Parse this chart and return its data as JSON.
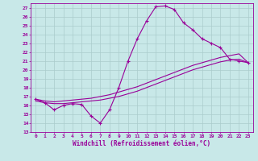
{
  "xlabel": "Windchill (Refroidissement éolien,°C)",
  "bg_color": "#c8e8e8",
  "line_color": "#990099",
  "grid_color": "#aacccc",
  "xlim": [
    -0.5,
    23.5
  ],
  "ylim": [
    13,
    27.5
  ],
  "xticks": [
    0,
    1,
    2,
    3,
    4,
    5,
    6,
    7,
    8,
    9,
    10,
    11,
    12,
    13,
    14,
    15,
    16,
    17,
    18,
    19,
    20,
    21,
    22,
    23
  ],
  "yticks": [
    13,
    14,
    15,
    16,
    17,
    18,
    19,
    20,
    21,
    22,
    23,
    24,
    25,
    26,
    27
  ],
  "line1_x": [
    0,
    1,
    2,
    3,
    4,
    5,
    6,
    7,
    8,
    9,
    10,
    11,
    12,
    13,
    14,
    15,
    16,
    17,
    18,
    19,
    20,
    21,
    22,
    23
  ],
  "line1_y": [
    16.7,
    16.3,
    15.5,
    16.0,
    16.2,
    16.1,
    14.8,
    14.0,
    15.5,
    18.0,
    21.0,
    23.5,
    25.5,
    27.1,
    27.2,
    26.8,
    25.3,
    24.5,
    23.5,
    23.0,
    22.5,
    21.2,
    21.0,
    20.8
  ],
  "line2_x": [
    0,
    1,
    2,
    3,
    4,
    5,
    6,
    7,
    8,
    9,
    10,
    11,
    12,
    13,
    14,
    15,
    16,
    17,
    18,
    19,
    20,
    21,
    22,
    23
  ],
  "line2_y": [
    16.5,
    16.3,
    16.2,
    16.2,
    16.3,
    16.4,
    16.5,
    16.6,
    16.8,
    17.0,
    17.3,
    17.6,
    18.0,
    18.4,
    18.8,
    19.2,
    19.6,
    20.0,
    20.3,
    20.6,
    20.9,
    21.1,
    21.2,
    20.8
  ],
  "line3_x": [
    0,
    1,
    2,
    3,
    4,
    5,
    6,
    7,
    8,
    9,
    10,
    11,
    12,
    13,
    14,
    15,
    16,
    17,
    18,
    19,
    20,
    21,
    22,
    23
  ],
  "line3_y": [
    16.7,
    16.5,
    16.4,
    16.5,
    16.6,
    16.7,
    16.8,
    17.0,
    17.2,
    17.5,
    17.8,
    18.1,
    18.5,
    18.9,
    19.3,
    19.7,
    20.1,
    20.5,
    20.8,
    21.1,
    21.4,
    21.6,
    21.8,
    20.8
  ]
}
